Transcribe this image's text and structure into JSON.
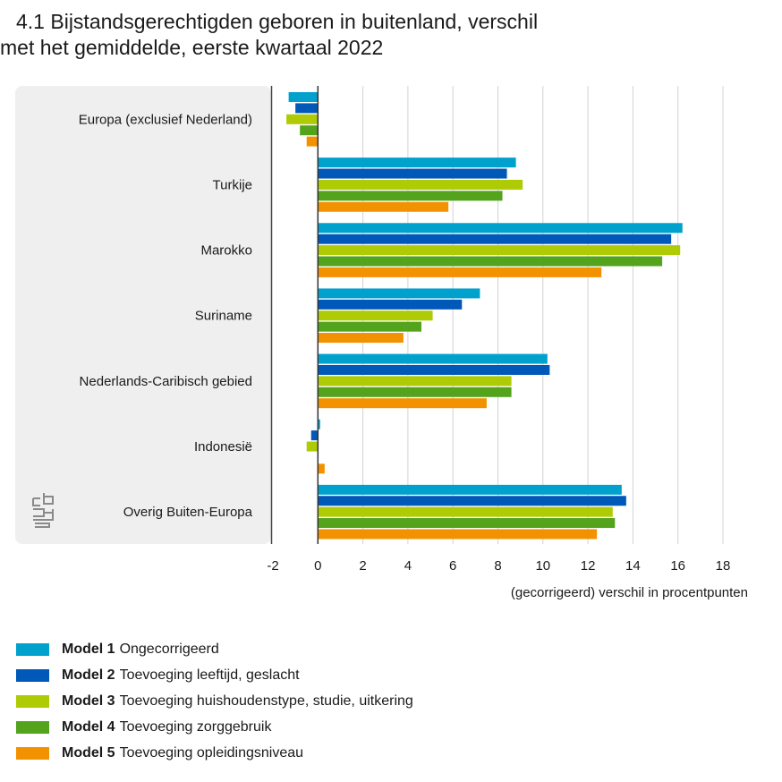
{
  "title_line1": "4.1 Bijstandsgerechtigden geboren in buitenland, verschil",
  "title_line2": "met het gemiddelde, eerste kwartaal 2022",
  "chart_data": {
    "type": "bar",
    "orientation": "horizontal",
    "categories": [
      "Europa (exclusief Nederland)",
      "Turkije",
      "Marokko",
      "Suriname",
      "Nederlands-Caribisch gebied",
      "Indonesië",
      "Overig Buiten-Europa"
    ],
    "series": [
      {
        "name": "Model 1",
        "description": "Ongecorrigeerd",
        "color": "#00a1cd",
        "values": [
          -1.3,
          8.8,
          16.2,
          7.2,
          10.2,
          0.1,
          13.5
        ]
      },
      {
        "name": "Model 2",
        "description": "Toevoeging leeftijd, geslacht",
        "color": "#0058b8",
        "values": [
          -1.0,
          8.4,
          15.7,
          6.4,
          10.3,
          -0.3,
          13.7
        ]
      },
      {
        "name": "Model 3",
        "description": "Toevoeging huishoudenstype, studie, uitkering",
        "color": "#afcb05",
        "values": [
          -1.4,
          9.1,
          16.1,
          5.1,
          8.6,
          -0.5,
          13.1
        ]
      },
      {
        "name": "Model 4",
        "description": "Toevoeging zorggebruik",
        "color": "#53a31d",
        "values": [
          -0.8,
          8.2,
          15.3,
          4.6,
          8.6,
          0.0,
          13.2
        ]
      },
      {
        "name": "Model 5",
        "description": "Toevoeging opleidingsniveau",
        "color": "#f39200",
        "values": [
          -0.5,
          5.8,
          12.6,
          3.8,
          7.5,
          0.3,
          12.4
        ]
      }
    ],
    "xlim": [
      -2,
      18
    ],
    "xticks": [
      "-2",
      "0",
      "2",
      "4",
      "6",
      "8",
      "10",
      "12",
      "14",
      "16",
      "18"
    ],
    "xlabel": "(gecorrigeerd) verschil in procentpunten",
    "grid": true,
    "legend_position": "bottom"
  },
  "logo_text": "cbs"
}
